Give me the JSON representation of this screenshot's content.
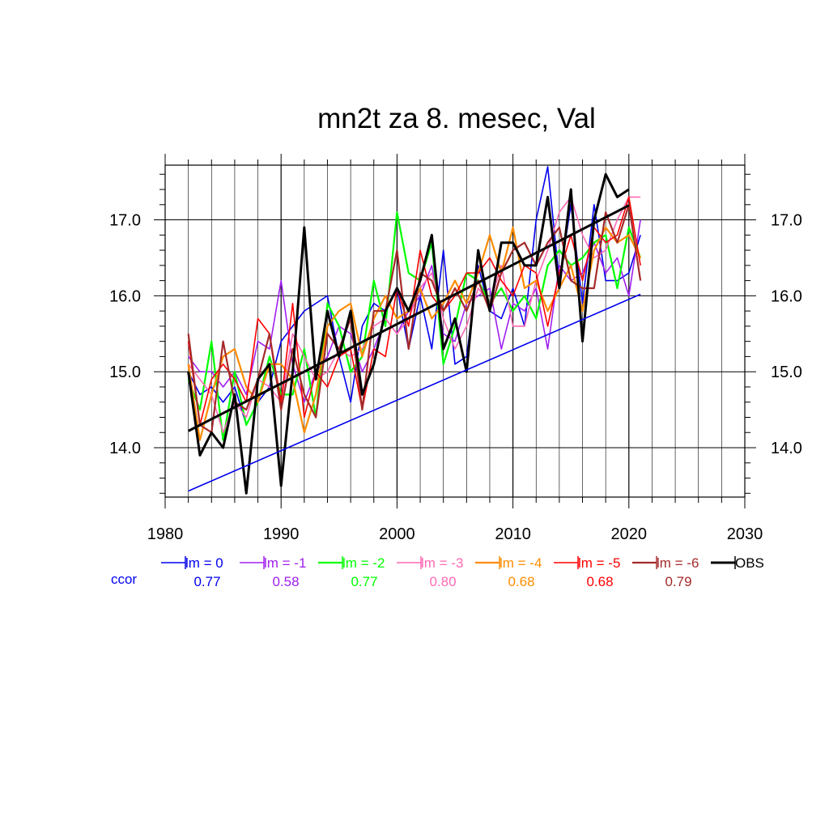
{
  "chart_data": {
    "type": "line",
    "title": "mn2t za 8. mesec, Val",
    "xlim": [
      1980,
      2030
    ],
    "ylim": [
      13.35,
      17.72
    ],
    "x_ticks": [
      "1980",
      "1990",
      "2000",
      "2010",
      "2020",
      "2030"
    ],
    "y_ticks": [
      "14.0",
      "15.0",
      "16.0",
      "17.0"
    ],
    "grid": true,
    "ccor_label": "ccor",
    "years": [
      1982,
      1983,
      1984,
      1985,
      1986,
      1987,
      1988,
      1989,
      1990,
      1991,
      1992,
      1993,
      1994,
      1995,
      1996,
      1997,
      1998,
      1999,
      2000,
      2001,
      2002,
      2003,
      2004,
      2005,
      2006,
      2007,
      2008,
      2009,
      2010,
      2011,
      2012,
      2013,
      2014,
      2015,
      2016,
      2017,
      2018,
      2019,
      2020,
      2021
    ],
    "series": [
      {
        "name": "lm = 0",
        "color": "#0000ee",
        "ccor": "0.77",
        "width": 1.6,
        "values": [
          15.0,
          14.7,
          14.8,
          14.6,
          14.8,
          14.3,
          14.6,
          14.8,
          15.4,
          15.6,
          15.8,
          15.9,
          16.0,
          15.2,
          14.6,
          15.6,
          15.9,
          15.8,
          16.1,
          15.3,
          16.0,
          15.3,
          16.6,
          15.1,
          15.2,
          16.4,
          15.8,
          15.7,
          16.1,
          15.6,
          17.0,
          17.7,
          16.2,
          17.2,
          15.9,
          17.2,
          16.2,
          16.2,
          16.3,
          16.8
        ]
      },
      {
        "name": "lm = -1",
        "color": "#a020f0",
        "ccor": "0.58",
        "width": 1.6,
        "values": [
          15.2,
          15.0,
          15.0,
          14.8,
          15.0,
          14.7,
          15.4,
          15.3,
          16.2,
          15.1,
          14.6,
          15.0,
          15.2,
          15.6,
          15.5,
          15.0,
          15.3,
          15.7,
          15.5,
          15.8,
          16.0,
          16.4,
          15.5,
          15.4,
          15.9,
          16.0,
          16.1,
          15.3,
          15.9,
          15.8,
          16.1,
          15.3,
          16.4,
          16.2,
          16.3,
          16.7,
          16.3,
          16.5,
          16.0,
          17.0
        ]
      },
      {
        "name": "lm = -2",
        "color": "#00ff00",
        "ccor": "0.77",
        "width": 2.2,
        "values": [
          14.9,
          14.5,
          15.4,
          14.1,
          15.0,
          14.3,
          14.6,
          15.2,
          14.7,
          14.7,
          15.3,
          14.4,
          15.9,
          15.6,
          15.0,
          15.2,
          16.2,
          15.6,
          17.1,
          16.3,
          16.2,
          16.7,
          15.1,
          15.6,
          16.3,
          16.2,
          15.9,
          16.1,
          15.8,
          16.0,
          15.7,
          16.4,
          16.6,
          16.4,
          16.5,
          16.7,
          16.8,
          16.1,
          16.9,
          16.5
        ]
      },
      {
        "name": "lm = -3",
        "color": "#ff69b4",
        "ccor": "0.80",
        "width": 1.6,
        "values": [
          15.1,
          14.9,
          14.7,
          14.2,
          14.6,
          14.4,
          14.9,
          14.8,
          14.6,
          15.5,
          15.2,
          14.9,
          15.0,
          15.3,
          15.2,
          15.3,
          15.6,
          15.7,
          15.5,
          15.7,
          16.1,
          16.3,
          15.7,
          15.3,
          15.6,
          16.1,
          15.9,
          16.4,
          15.6,
          15.6,
          16.2,
          16.6,
          17.1,
          17.3,
          16.8,
          16.5,
          16.6,
          17.0,
          17.3,
          17.3
        ]
      },
      {
        "name": "lm = -4",
        "color": "#ff8c00",
        "ccor": "0.68",
        "width": 2.2,
        "values": [
          15.1,
          14.1,
          14.7,
          15.2,
          15.3,
          14.8,
          14.6,
          15.1,
          15.1,
          14.9,
          14.2,
          14.7,
          15.6,
          15.8,
          15.9,
          15.2,
          15.7,
          16.0,
          15.7,
          15.8,
          16.1,
          15.7,
          15.9,
          16.2,
          15.9,
          16.3,
          16.8,
          16.3,
          16.9,
          16.1,
          16.2,
          15.8,
          16.1,
          16.4,
          15.8,
          16.6,
          16.9,
          16.7,
          16.8,
          16.5
        ]
      },
      {
        "name": "lm = -5",
        "color": "#ff0000",
        "ccor": "0.68",
        "width": 1.6,
        "values": [
          15.4,
          14.3,
          14.9,
          15.1,
          14.9,
          14.6,
          15.7,
          15.5,
          14.6,
          15.9,
          14.4,
          15.0,
          14.8,
          15.2,
          15.3,
          14.5,
          15.3,
          15.2,
          16.1,
          15.6,
          16.6,
          16.0,
          15.8,
          16.0,
          16.3,
          16.3,
          16.5,
          16.2,
          16.0,
          16.4,
          16.3,
          15.6,
          16.3,
          16.8,
          16.2,
          16.9,
          16.7,
          16.8,
          17.3,
          16.4
        ]
      },
      {
        "name": "lm = -6",
        "color": "#a52a2a",
        "ccor": "0.79",
        "width": 2.2,
        "values": [
          15.5,
          14.3,
          14.2,
          15.4,
          14.6,
          14.5,
          14.9,
          15.5,
          14.5,
          15.3,
          14.7,
          14.4,
          15.5,
          15.3,
          15.7,
          14.5,
          15.8,
          15.8,
          16.6,
          15.3,
          16.3,
          16.2,
          15.8,
          16.1,
          15.8,
          16.2,
          15.8,
          16.3,
          16.6,
          16.7,
          16.4,
          16.7,
          16.9,
          16.2,
          16.1,
          16.1,
          17.1,
          16.7,
          17.2,
          16.2
        ]
      },
      {
        "name": "OBS",
        "color": "#000000",
        "ccor": "",
        "width": 3,
        "values": [
          15.0,
          13.9,
          14.2,
          14.0,
          14.7,
          13.4,
          14.9,
          15.1,
          13.5,
          15.0,
          16.9,
          14.9,
          15.8,
          15.2,
          15.8,
          14.7,
          15.1,
          15.8,
          16.1,
          15.8,
          16.2,
          16.8,
          15.3,
          15.7,
          15.0,
          16.6,
          15.8,
          16.7,
          16.7,
          16.4,
          16.4,
          17.3,
          16.1,
          17.4,
          15.4,
          17.0,
          17.6,
          17.3,
          17.4
        ]
      }
    ],
    "trend_lines": [
      {
        "color": "#000000",
        "width": 3,
        "x": [
          1982,
          2020
        ],
        "y": [
          14.22,
          17.19
        ]
      },
      {
        "color": "#0000ee",
        "width": 1.6,
        "x": [
          1982,
          2021
        ],
        "y": [
          13.43,
          16.02
        ]
      }
    ]
  }
}
